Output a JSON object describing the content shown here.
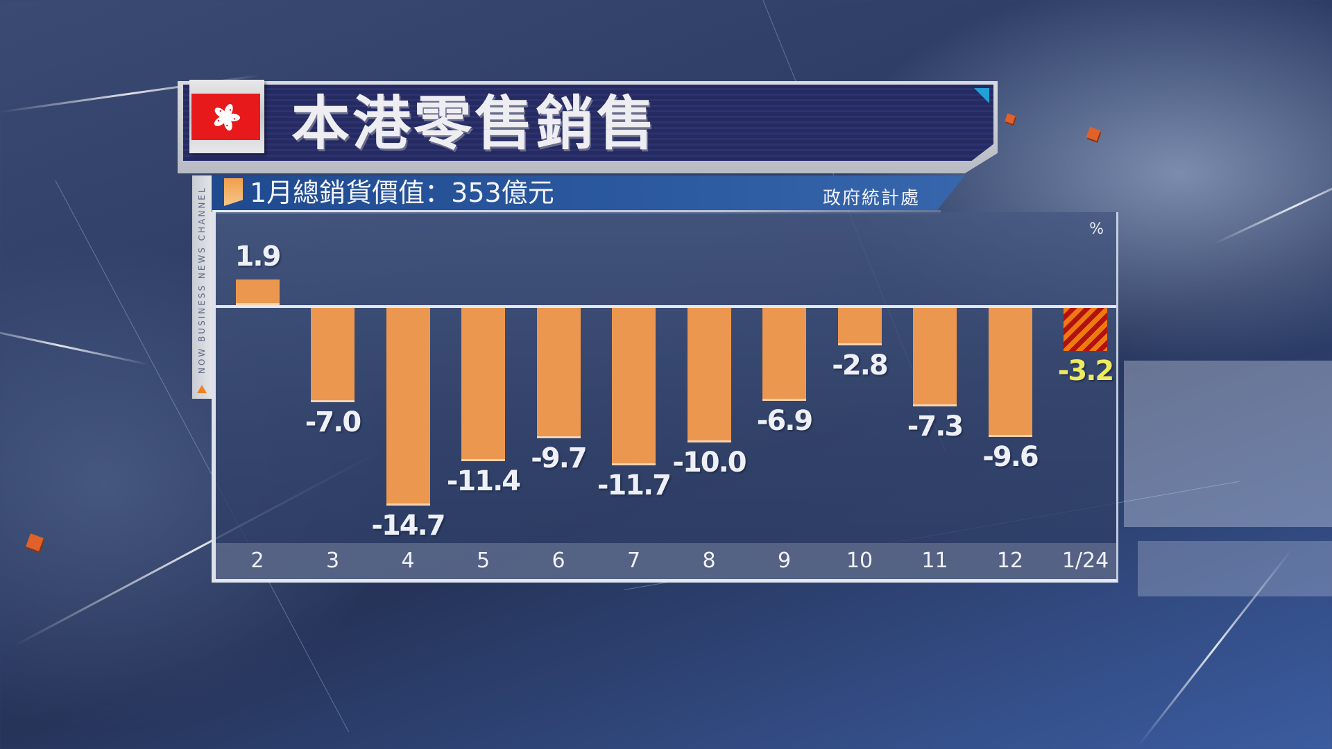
{
  "title": "本港零售銷售",
  "subtitle": "1月總銷貨價值：353億元",
  "source": "政府統計處",
  "channel_strip": "NOW BUSINESS NEWS CHANNEL",
  "unit_label": "%",
  "colors": {
    "bar": "#ec9750",
    "highlight_bar_stripe_a": "#f07a12",
    "highlight_bar_stripe_b": "#b01212",
    "highlight_label": "#eeec5e",
    "title_bg": "#252a60",
    "subtitle_bg": "#2c5aa0",
    "flag_red": "#e8191a"
  },
  "chart_data": {
    "type": "bar",
    "title": "本港零售銷售",
    "subtitle": "1月總銷貨價值：353億元",
    "source": "政府統計處",
    "xlabel": "",
    "ylabel": "%",
    "categories": [
      "2",
      "3",
      "4",
      "5",
      "6",
      "7",
      "8",
      "9",
      "10",
      "11",
      "12",
      "1/24"
    ],
    "values": [
      1.9,
      -7.0,
      -14.7,
      -11.4,
      -9.7,
      -11.7,
      -10.0,
      -6.9,
      -2.8,
      -7.3,
      -9.6,
      -3.2
    ],
    "labels": [
      "1.9",
      "-7.0",
      "-14.7",
      "-11.4",
      "-9.7",
      "-11.7",
      "-10.0",
      "-6.9",
      "-2.8",
      "-7.3",
      "-9.6",
      "-3.2"
    ],
    "highlight_index": 11,
    "ylim": [
      -16,
      4
    ],
    "grid": false,
    "legend": null
  }
}
